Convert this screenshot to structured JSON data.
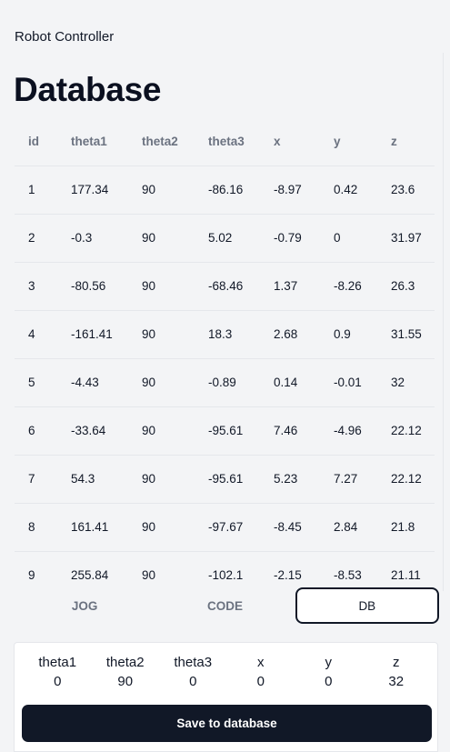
{
  "app": {
    "title": "Robot Controller"
  },
  "page": {
    "title": "Database"
  },
  "table": {
    "columns": [
      "id",
      "theta1",
      "theta2",
      "theta3",
      "x",
      "y",
      "z"
    ],
    "rows": [
      [
        "1",
        "177.34",
        "90",
        "-86.16",
        "-8.97",
        "0.42",
        "23.6"
      ],
      [
        "2",
        "-0.3",
        "90",
        "5.02",
        "-0.79",
        "0",
        "31.97"
      ],
      [
        "3",
        "-80.56",
        "90",
        "-68.46",
        "1.37",
        "-8.26",
        "26.3"
      ],
      [
        "4",
        "-161.41",
        "90",
        "18.3",
        "2.68",
        "0.9",
        "31.55"
      ],
      [
        "5",
        "-4.43",
        "90",
        "-0.89",
        "0.14",
        "-0.01",
        "32"
      ],
      [
        "6",
        "-33.64",
        "90",
        "-95.61",
        "7.46",
        "-4.96",
        "22.12"
      ],
      [
        "7",
        "54.3",
        "90",
        "-95.61",
        "5.23",
        "7.27",
        "22.12"
      ],
      [
        "8",
        "161.41",
        "90",
        "-97.67",
        "-8.45",
        "2.84",
        "21.8"
      ],
      [
        "9",
        "255.84",
        "90",
        "-102.1",
        "-2.15",
        "-8.53",
        "21.11"
      ]
    ]
  },
  "tabs": [
    {
      "label": "JOG",
      "active": false
    },
    {
      "label": "CODE",
      "active": false
    },
    {
      "label": "DB",
      "active": true
    }
  ],
  "current": {
    "fields": [
      {
        "label": "theta1",
        "value": "0"
      },
      {
        "label": "theta2",
        "value": "90"
      },
      {
        "label": "theta3",
        "value": "0"
      },
      {
        "label": "x",
        "value": "0"
      },
      {
        "label": "y",
        "value": "0"
      },
      {
        "label": "z",
        "value": "32"
      }
    ],
    "save_label": "Save to database"
  }
}
